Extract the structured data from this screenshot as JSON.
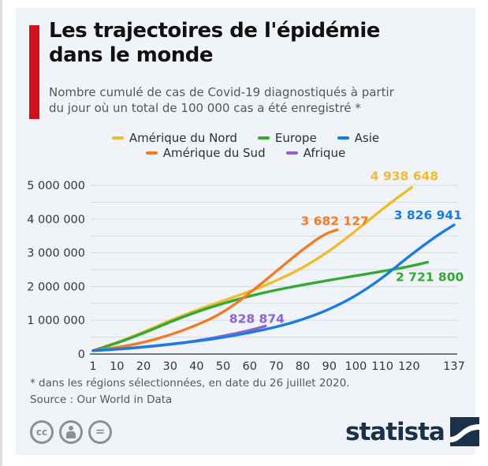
{
  "header": {
    "title": "Les trajectoires de l'épidémie dans le monde",
    "title_lines": [
      "Les trajectoires de l'épidémie",
      "dans le monde"
    ],
    "subtitle": "Nombre cumulé de cas de Covid-19 diagnostiqués à partir du jour où un total de 100 000 cas a été enregistré *",
    "subtitle_lines": [
      "Nombre cumulé de cas de Covid-19 diagnostiqués à partir",
      "du jour où un total de 100 000 cas a été enregistré *"
    ],
    "accent_color": "#d0101e"
  },
  "footnotes": {
    "asterisk_note": "* dans les régions sélectionnées, en date du 26 juillet 2020.",
    "source": "Source : Our World in Data"
  },
  "footer": {
    "license_icons": [
      "cc-icon",
      "attribution-person-icon",
      "equals-icon"
    ],
    "brand": "statista",
    "brand_color": "#1b3049"
  },
  "chart_data": {
    "type": "line",
    "title": "Les trajectoires de l'épidémie dans le monde",
    "subtitle": "Nombre cumulé de cas de Covid-19 diagnostiqués à partir du jour où un total de 100 000 cas a été enregistré *",
    "xlabel": "",
    "ylabel": "",
    "xlim": [
      1,
      137
    ],
    "ylim": [
      0,
      5000000
    ],
    "x_ticks": [
      1,
      10,
      20,
      30,
      40,
      50,
      60,
      70,
      80,
      90,
      100,
      110,
      120,
      137
    ],
    "y_ticks": [
      0,
      1000000,
      2000000,
      3000000,
      4000000,
      5000000
    ],
    "grid_step": 500000,
    "grid": true,
    "legend_position": "top-center",
    "legend_rows": [
      [
        0,
        1,
        2
      ],
      [
        3,
        4
      ]
    ],
    "series": [
      {
        "name": "Amérique du Nord",
        "color": "#edbd2f",
        "final_value": 4938648,
        "end_label": "4 938 648",
        "points": [
          [
            1,
            100000
          ],
          [
            10,
            330000
          ],
          [
            20,
            650000
          ],
          [
            30,
            1000000
          ],
          [
            40,
            1300000
          ],
          [
            50,
            1580000
          ],
          [
            60,
            1850000
          ],
          [
            70,
            2170000
          ],
          [
            80,
            2550000
          ],
          [
            90,
            3050000
          ],
          [
            100,
            3650000
          ],
          [
            110,
            4300000
          ],
          [
            121,
            4938648
          ]
        ]
      },
      {
        "name": "Europe",
        "color": "#33a934",
        "final_value": 2721800,
        "end_label": "2 721 800",
        "points": [
          [
            1,
            100000
          ],
          [
            10,
            320000
          ],
          [
            20,
            620000
          ],
          [
            30,
            950000
          ],
          [
            40,
            1250000
          ],
          [
            50,
            1500000
          ],
          [
            60,
            1720000
          ],
          [
            70,
            1900000
          ],
          [
            80,
            2050000
          ],
          [
            90,
            2190000
          ],
          [
            100,
            2320000
          ],
          [
            110,
            2450000
          ],
          [
            120,
            2590000
          ],
          [
            127,
            2721800
          ]
        ]
      },
      {
        "name": "Asie",
        "color": "#1a7ce0",
        "final_value": 3826941,
        "end_label": "3 826 941",
        "points": [
          [
            1,
            100000
          ],
          [
            10,
            140000
          ],
          [
            20,
            210000
          ],
          [
            30,
            290000
          ],
          [
            40,
            380000
          ],
          [
            50,
            490000
          ],
          [
            60,
            630000
          ],
          [
            70,
            800000
          ],
          [
            80,
            1020000
          ],
          [
            90,
            1320000
          ],
          [
            100,
            1720000
          ],
          [
            110,
            2250000
          ],
          [
            120,
            2900000
          ],
          [
            130,
            3480000
          ],
          [
            137,
            3826941
          ]
        ]
      },
      {
        "name": "Amérique du Sud",
        "color": "#ef7d26",
        "final_value": 3682127,
        "end_label": "3 682 127",
        "points": [
          [
            1,
            100000
          ],
          [
            10,
            190000
          ],
          [
            20,
            340000
          ],
          [
            30,
            560000
          ],
          [
            40,
            850000
          ],
          [
            50,
            1220000
          ],
          [
            60,
            1800000
          ],
          [
            70,
            2450000
          ],
          [
            80,
            3100000
          ],
          [
            88,
            3550000
          ],
          [
            93,
            3682127
          ]
        ]
      },
      {
        "name": "Afrique",
        "color": "#8f63c9",
        "final_value": 828874,
        "end_label": "828 874",
        "points": [
          [
            1,
            100000
          ],
          [
            10,
            140000
          ],
          [
            20,
            200000
          ],
          [
            30,
            280000
          ],
          [
            40,
            390000
          ],
          [
            50,
            530000
          ],
          [
            60,
            700000
          ],
          [
            66,
            828874
          ]
        ]
      }
    ]
  }
}
